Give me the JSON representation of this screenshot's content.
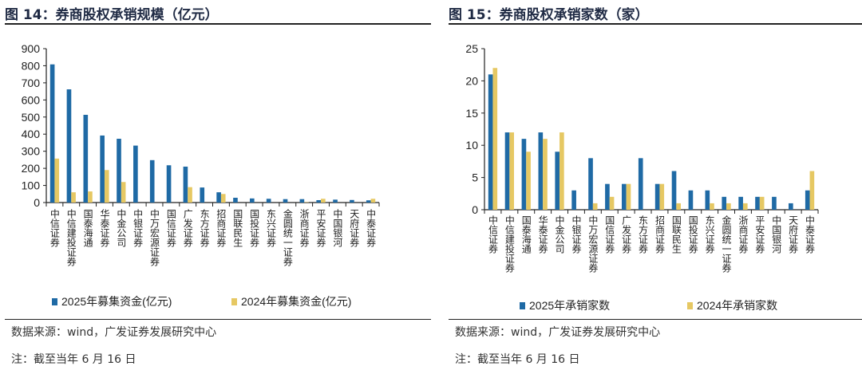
{
  "charts_meta": [
    {
      "title": "图 14：券商股权承销规模（亿元）",
      "source": "数据来源：wind，广发证券发展研究中心",
      "note": "注：截至当年 6 月 16 日"
    },
    {
      "title": "图 15：券商股权承销家数（家）",
      "source": "数据来源：wind，广发证券发展研究中心",
      "note": "注：截至当年 6 月 16 日"
    }
  ],
  "colors": {
    "series2025": "#1f6aa5",
    "series2024": "#e6c863"
  },
  "chart_data": [
    {
      "type": "bar",
      "title": "券商股权承销规模（亿元）",
      "categories": [
        "中信证券",
        "中信建投证券",
        "国泰海通",
        "华泰证券",
        "中金公司",
        "中银证券",
        "中万宏源证券",
        "国信证券",
        "广发证券",
        "东方证券",
        "招商证券",
        "国联民生",
        "国投证券",
        "东兴证券",
        "金圆统一证券",
        "浙商证券",
        "平安证券",
        "中国银河",
        "天府证券",
        "中泰证券"
      ],
      "series": [
        {
          "name": "2025年募集资金(亿元)",
          "values": [
            808,
            662,
            513,
            392,
            373,
            333,
            248,
            218,
            210,
            88,
            60,
            28,
            24,
            22,
            20,
            20,
            14,
            17,
            15,
            13
          ]
        },
        {
          "name": "2024年募集资金(亿元)",
          "values": [
            257,
            60,
            65,
            190,
            120,
            0,
            0,
            0,
            90,
            0,
            50,
            0,
            0,
            0,
            0,
            2,
            22,
            0,
            0,
            22
          ]
        }
      ],
      "ylim": [
        0,
        900
      ],
      "yticks": [
        "0",
        "100",
        "200",
        "300",
        "400",
        "500",
        "600",
        "700",
        "800",
        "900"
      ],
      "grid": false,
      "legend": "bottom"
    },
    {
      "type": "bar",
      "title": "券商股权承销家数（家）",
      "categories": [
        "中信证券",
        "中信建投证券",
        "国泰海通",
        "华泰证券",
        "中金公司",
        "中银证券",
        "中万宏源证券",
        "国信证券",
        "广发证券",
        "东方证券",
        "招商证券",
        "国联民生",
        "国投证券",
        "东兴证券",
        "金圆统一证券",
        "浙商证券",
        "平安证券",
        "中国银河",
        "天府证券",
        "中泰证券"
      ],
      "series": [
        {
          "name": "2025年承销家数",
          "values": [
            21,
            12,
            11,
            12,
            9,
            3,
            8,
            4,
            4,
            8,
            4,
            6,
            3,
            3,
            2,
            2,
            2,
            2,
            1,
            3
          ]
        },
        {
          "name": "2024年承销家数",
          "values": [
            22,
            12,
            9,
            11,
            12,
            0,
            1,
            2,
            4,
            0,
            4,
            1,
            0,
            1,
            1,
            1,
            2,
            0,
            0,
            6
          ]
        }
      ],
      "ylim": [
        0,
        25
      ],
      "yticks": [
        "0",
        "5",
        "10",
        "15",
        "20",
        "25"
      ],
      "grid": false,
      "legend": "bottom"
    }
  ]
}
